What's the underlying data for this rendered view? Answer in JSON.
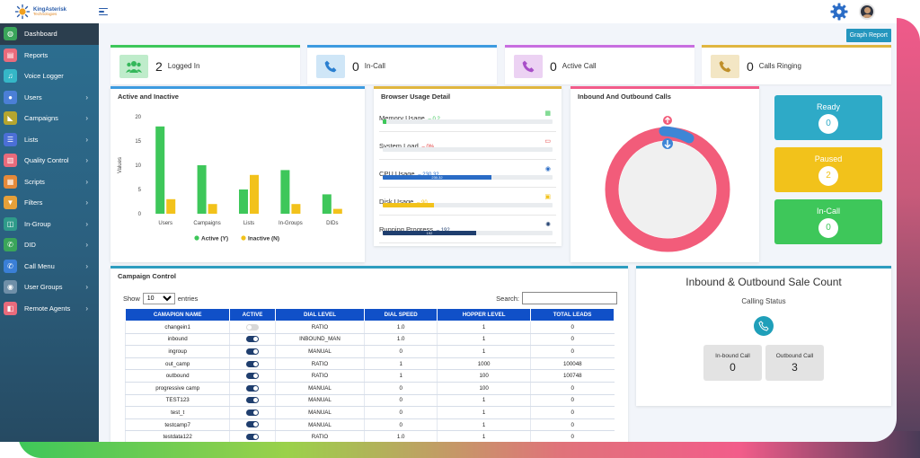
{
  "logo": {
    "line1": "KingAsterisk",
    "line2": "Technologies"
  },
  "sidebar": {
    "items": [
      {
        "label": "Dashboard",
        "icon": "dashboard-icon",
        "color": "#3aa55a",
        "glyph": "◍",
        "chev": ""
      },
      {
        "label": "Reports",
        "icon": "reports-icon",
        "color": "#e96b7c",
        "glyph": "▤",
        "chev": ""
      },
      {
        "label": "Voice Logger",
        "icon": "music-note-icon",
        "color": "#35b7c7",
        "glyph": "♫",
        "chev": ""
      },
      {
        "label": "Users",
        "icon": "user-icon",
        "color": "#4b7fd6",
        "glyph": "●",
        "chev": "›"
      },
      {
        "label": "Campaigns",
        "icon": "megaphone-icon",
        "color": "#b5a52f",
        "glyph": "◣",
        "chev": "›"
      },
      {
        "label": "Lists",
        "icon": "list-icon",
        "color": "#4b6fd6",
        "glyph": "☰",
        "chev": "›"
      },
      {
        "label": "Quality Control",
        "icon": "clipboard-icon",
        "color": "#e96b7c",
        "glyph": "▥",
        "chev": "›"
      },
      {
        "label": "Scripts",
        "icon": "script-icon",
        "color": "#e58a3a",
        "glyph": "▦",
        "chev": "›"
      },
      {
        "label": "Filters",
        "icon": "filter-icon",
        "color": "#e5a03a",
        "glyph": "▼",
        "chev": "›"
      },
      {
        "label": "In-Group",
        "icon": "ingroup-icon",
        "color": "#2f9b8a",
        "glyph": "◫",
        "chev": "›"
      },
      {
        "label": "DID",
        "icon": "phone-book-icon",
        "color": "#3aa55a",
        "glyph": "✆",
        "chev": "›"
      },
      {
        "label": "Call Menu",
        "icon": "phone-icon",
        "color": "#3a7fd6",
        "glyph": "✆",
        "chev": "›"
      },
      {
        "label": "User Groups",
        "icon": "user-group-icon",
        "color": "#6f8fa8",
        "glyph": "◉",
        "chev": "›"
      },
      {
        "label": "Remote Agents",
        "icon": "remote-agent-icon",
        "color": "#e96b7c",
        "glyph": "◧",
        "chev": "›"
      }
    ]
  },
  "header": {
    "graph_report": "Graph Report"
  },
  "stats": [
    {
      "num": "2",
      "label": "Logged In",
      "accent": "#3ec75a",
      "iconbg": "#bfeccb",
      "iconcolor": "#34b75a"
    },
    {
      "num": "0",
      "label": "In-Call",
      "accent": "#3e9be0",
      "iconbg": "#cfe6f7",
      "iconcolor": "#2a7fd0"
    },
    {
      "num": "0",
      "label": "Active Call",
      "accent": "#c86ee0",
      "iconbg": "#ecd2f3",
      "iconcolor": "#a84ec8"
    },
    {
      "num": "0",
      "label": "Calls Ringing",
      "accent": "#e0b640",
      "iconbg": "#f3e6c4",
      "iconcolor": "#c0902a"
    }
  ],
  "active_inactive": {
    "title": "Active and Inactive"
  },
  "chart_data": {
    "type": "bar",
    "title": "Active and Inactive",
    "categories": [
      "Users",
      "Campaigns",
      "Lists",
      "In-Groups",
      "DIDs"
    ],
    "series": [
      {
        "name": "Active (Y)",
        "values": [
          18,
          10,
          5,
          9,
          4
        ],
        "color": "#3ec75a"
      },
      {
        "name": "Inactive (N)",
        "values": [
          3,
          2,
          8,
          2,
          1
        ],
        "color": "#f2c21b"
      }
    ],
    "xlabel": "",
    "ylabel": "Values",
    "ylim": [
      0,
      20
    ],
    "yticks": [
      "0",
      "5",
      "10",
      "15",
      "20"
    ],
    "grid": false,
    "legend": "bottom"
  },
  "browser_usage": {
    "title": "Browser Usage Detail",
    "rows": [
      {
        "label": "Memory Usage",
        "value": "0.2",
        "fill": 0.02,
        "color": "#3ec75a",
        "icon": "memory-icon",
        "glyph": "▦",
        "bar_text": "",
        "bar_color": "#3ec75a"
      },
      {
        "label": "System Load",
        "value": "0%",
        "fill": 0,
        "color": "#e23a3a",
        "icon": "monitor-icon",
        "glyph": "▭",
        "bar_text": "",
        "bar_color": "#e23a3a"
      },
      {
        "label": "CPU Usage",
        "value": "230.32",
        "fill": 0.64,
        "color": "#2a6cc6",
        "icon": "cpu-icon",
        "glyph": "◉",
        "bar_text": "230.32",
        "bar_color": "#2a6cc6"
      },
      {
        "label": "Disk Usage",
        "value": "90",
        "fill": 0.3,
        "color": "#f2c21b",
        "icon": "disk-icon",
        "glyph": "▣",
        "bar_text": "",
        "bar_color": "#f2c21b"
      },
      {
        "label": "Running Progress",
        "value": "192",
        "fill": 0.55,
        "color": "#1f3e6e",
        "icon": "spinner-icon",
        "glyph": "✺",
        "bar_text": "192",
        "bar_color": "#1f3e6e"
      }
    ]
  },
  "in_out_calls": {
    "title": "Inbound And Outbound Calls"
  },
  "status": [
    {
      "label": "Ready",
      "count": "0",
      "color": "#2eaac7"
    },
    {
      "label": "Paused",
      "count": "2",
      "color": "#f2c21b"
    },
    {
      "label": "In-Call",
      "count": "0",
      "color": "#3ec75a"
    }
  ],
  "campaign": {
    "title": "Campaign Control",
    "show": "Show",
    "entries_value": "10",
    "entries": "entries",
    "search": "Search:",
    "columns": [
      "CAMAPIGN NAME",
      "ACTIVE",
      "DIAL LEVEL",
      "DIAL SPEED",
      "HOPPER LEVEL",
      "TOTAL LEADS"
    ],
    "rows": [
      [
        "changein1",
        false,
        "RATIO",
        "1.0",
        "1",
        "0"
      ],
      [
        "inbound",
        true,
        "INBOUND_MAN",
        "1.0",
        "1",
        "0"
      ],
      [
        "ingroup",
        true,
        "MANUAL",
        "0",
        "1",
        "0"
      ],
      [
        "out_camp",
        true,
        "RATIO",
        "1",
        "1000",
        "100048"
      ],
      [
        "outbound",
        true,
        "RATIO",
        "1",
        "100",
        "100748"
      ],
      [
        "progressive camp",
        true,
        "MANUAL",
        "0",
        "100",
        "0"
      ],
      [
        "TEST123",
        true,
        "MANUAL",
        "0",
        "1",
        "0"
      ],
      [
        "test_t",
        true,
        "MANUAL",
        "0",
        "1",
        "0"
      ],
      [
        "testcamp7",
        true,
        "MANUAL",
        "0",
        "1",
        "0"
      ],
      [
        "testdata122",
        true,
        "RATIO",
        "1.0",
        "1",
        "0"
      ]
    ]
  },
  "sale": {
    "title": "Inbound & Outbound Sale Count",
    "subtitle": "Calling Status",
    "inbound_label": "In-bound Call",
    "inbound_value": "0",
    "outbound_label": "Outbound Call",
    "outbound_value": "3"
  }
}
